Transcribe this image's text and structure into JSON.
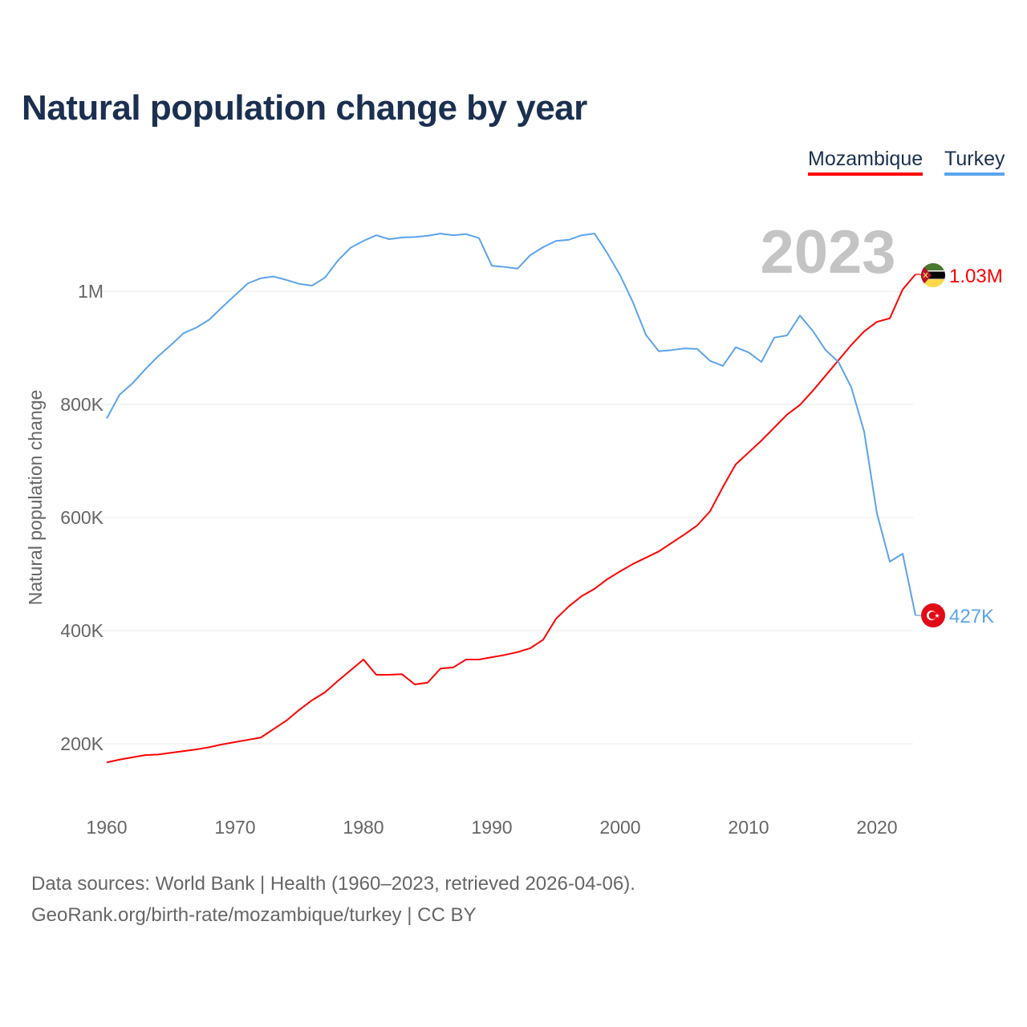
{
  "chart_data": {
    "type": "line",
    "title": "Natural population change by year",
    "xlabel": "",
    "ylabel": "Natural population change",
    "xlim": [
      1960,
      2023
    ],
    "ylim": [
      100000,
      1150000
    ],
    "grid": true,
    "legend_position": "top-right",
    "year_watermark": "2023",
    "x_ticks": [
      {
        "v": 1960,
        "label": "1960"
      },
      {
        "v": 1970,
        "label": "1970"
      },
      {
        "v": 1980,
        "label": "1980"
      },
      {
        "v": 1990,
        "label": "1990"
      },
      {
        "v": 2000,
        "label": "2000"
      },
      {
        "v": 2010,
        "label": "2010"
      },
      {
        "v": 2020,
        "label": "2020"
      }
    ],
    "y_ticks": [
      {
        "v": 200000,
        "label": "200K"
      },
      {
        "v": 400000,
        "label": "400K"
      },
      {
        "v": 600000,
        "label": "600K"
      },
      {
        "v": 800000,
        "label": "800K"
      },
      {
        "v": 1000000,
        "label": "1M"
      }
    ],
    "x": [
      1960,
      1961,
      1962,
      1963,
      1964,
      1965,
      1966,
      1967,
      1968,
      1969,
      1970,
      1971,
      1972,
      1973,
      1974,
      1975,
      1976,
      1977,
      1978,
      1979,
      1980,
      1981,
      1982,
      1983,
      1984,
      1985,
      1986,
      1987,
      1988,
      1989,
      1990,
      1991,
      1992,
      1993,
      1994,
      1995,
      1996,
      1997,
      1998,
      1999,
      2000,
      2001,
      2002,
      2003,
      2004,
      2005,
      2006,
      2007,
      2008,
      2009,
      2010,
      2011,
      2012,
      2013,
      2014,
      2015,
      2016,
      2017,
      2018,
      2019,
      2020,
      2021,
      2022,
      2023
    ],
    "series": [
      {
        "name": "Mozambique",
        "color": "#ff0000",
        "end_label": "1.03M",
        "flag": "mozambique-flag-icon",
        "values": [
          167000,
          172000,
          176000,
          180000,
          181000,
          184000,
          187000,
          190000,
          194000,
          199000,
          203000,
          207000,
          211000,
          226000,
          241000,
          260000,
          277000,
          291000,
          311000,
          330000,
          349000,
          322000,
          322000,
          323000,
          305000,
          308000,
          333000,
          335000,
          349000,
          349000,
          353000,
          357000,
          362000,
          369000,
          384000,
          421000,
          443000,
          461000,
          474000,
          491000,
          505000,
          518000,
          529000,
          540000,
          555000,
          570000,
          586000,
          611000,
          654000,
          694000,
          715000,
          736000,
          759000,
          782000,
          799000,
          824000,
          851000,
          878000,
          905000,
          929000,
          946000,
          952000,
          1003000,
          1030000
        ]
      },
      {
        "name": "Turkey",
        "color": "#5ba4ec",
        "end_label": "427K",
        "flag": "turkey-flag-icon",
        "values": [
          775000,
          817000,
          837000,
          862000,
          885000,
          905000,
          926000,
          936000,
          950000,
          972000,
          993000,
          1014000,
          1023000,
          1026000,
          1020000,
          1013000,
          1010000,
          1024000,
          1054000,
          1077000,
          1089000,
          1099000,
          1092000,
          1095000,
          1096000,
          1098000,
          1102000,
          1099000,
          1101000,
          1094000,
          1045000,
          1043000,
          1040000,
          1064000,
          1078000,
          1089000,
          1091000,
          1099000,
          1102000,
          1067000,
          1028000,
          980000,
          923000,
          894000,
          896000,
          899000,
          898000,
          877000,
          868000,
          901000,
          892000,
          875000,
          918000,
          922000,
          957000,
          930000,
          896000,
          875000,
          830000,
          752000,
          607000,
          522000,
          536000,
          427000
        ]
      }
    ]
  },
  "footer": {
    "sources": "Data sources: World Bank | Health (1960–2023, retrieved 2026-04-06).",
    "credit": "GeoRank.org/birth-rate/mozambique/turkey | CC BY"
  }
}
